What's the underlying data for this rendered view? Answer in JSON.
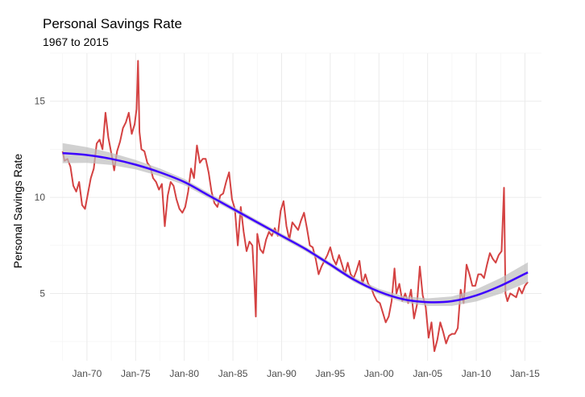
{
  "chart_data": {
    "type": "line",
    "title": "Personal Savings Rate",
    "subtitle": "1967 to 2015",
    "xlabel": "",
    "ylabel": "Personal Savings Rate",
    "xlim": [
      1966.2,
      2016.7
    ],
    "ylim": [
      1.5,
      17.5
    ],
    "x_ticks": [
      1970,
      1975,
      1980,
      1985,
      1990,
      1995,
      2000,
      2005,
      2010,
      2015
    ],
    "x_tick_labels": [
      "Jan-70",
      "Jan-75",
      "Jan-80",
      "Jan-85",
      "Jan-90",
      "Jan-95",
      "Jan-00",
      "Jan-05",
      "Jan-10",
      "Jan-15"
    ],
    "y_ticks": [
      5,
      10,
      15
    ],
    "y_tick_labels": [
      "5",
      "10",
      "15"
    ],
    "grid": true,
    "colors": {
      "series": "#d44242",
      "smooth": "#3d00ff",
      "band": "#bdbdbd"
    },
    "series": [
      {
        "x": [
          1967.5,
          1967.7,
          1968.0,
          1968.3,
          1968.6,
          1968.9,
          1969.2,
          1969.5,
          1969.8,
          1970.1,
          1970.4,
          1970.7,
          1971.0,
          1971.3,
          1971.6,
          1971.9,
          1972.2,
          1972.5,
          1972.8,
          1973.1,
          1973.4,
          1973.7,
          1974.0,
          1974.3,
          1974.6,
          1974.9,
          1975.1,
          1975.25,
          1975.4,
          1975.6,
          1975.9,
          1976.2,
          1976.5,
          1976.8,
          1977.1,
          1977.4,
          1977.7,
          1978.0,
          1978.3,
          1978.6,
          1978.9,
          1979.2,
          1979.5,
          1979.8,
          1980.1,
          1980.4,
          1980.7,
          1981.0,
          1981.3,
          1981.6,
          1981.9,
          1982.2,
          1982.5,
          1982.8,
          1983.1,
          1983.4,
          1983.7,
          1984.0,
          1984.3,
          1984.6,
          1984.9,
          1985.2,
          1985.5,
          1985.8,
          1986.1,
          1986.4,
          1986.7,
          1987.0,
          1987.2,
          1987.35,
          1987.5,
          1987.8,
          1988.1,
          1988.4,
          1988.7,
          1989.0,
          1989.3,
          1989.6,
          1989.9,
          1990.2,
          1990.5,
          1990.8,
          1991.1,
          1991.4,
          1991.7,
          1992.0,
          1992.3,
          1992.6,
          1992.9,
          1993.2,
          1993.5,
          1993.8,
          1994.1,
          1994.4,
          1994.7,
          1995.0,
          1995.3,
          1995.6,
          1995.9,
          1996.2,
          1996.5,
          1996.8,
          1997.1,
          1997.4,
          1997.7,
          1998.0,
          1998.3,
          1998.6,
          1998.9,
          1999.2,
          1999.5,
          1999.8,
          2000.1,
          2000.4,
          2000.7,
          2001.0,
          2001.3,
          2001.6,
          2001.8,
          2002.1,
          2002.4,
          2002.7,
          2003.0,
          2003.3,
          2003.6,
          2003.9,
          2004.2,
          2004.5,
          2004.8,
          2005.1,
          2005.4,
          2005.7,
          2006.0,
          2006.3,
          2006.6,
          2006.9,
          2007.2,
          2007.5,
          2007.8,
          2008.1,
          2008.4,
          2008.7,
          2009.0,
          2009.3,
          2009.6,
          2009.9,
          2010.2,
          2010.5,
          2010.8,
          2011.1,
          2011.4,
          2011.7,
          2012.0,
          2012.3,
          2012.6,
          2012.85,
          2013.0,
          2013.2,
          2013.5,
          2013.8,
          2014.1,
          2014.4,
          2014.7,
          2015.0,
          2015.3
        ],
        "values": [
          12.4,
          11.9,
          12.0,
          11.6,
          10.6,
          10.3,
          10.8,
          9.6,
          9.4,
          10.2,
          11.0,
          11.5,
          12.8,
          13.0,
          12.5,
          14.4,
          13.1,
          12.3,
          11.4,
          12.4,
          12.9,
          13.6,
          13.9,
          14.4,
          13.3,
          13.8,
          14.6,
          17.1,
          13.4,
          12.5,
          12.4,
          11.8,
          11.6,
          11.0,
          10.8,
          10.4,
          10.7,
          8.5,
          10.1,
          10.8,
          10.6,
          9.9,
          9.4,
          9.2,
          9.5,
          10.3,
          11.5,
          11.0,
          12.7,
          11.8,
          12.0,
          12.0,
          11.3,
          10.3,
          9.7,
          9.5,
          10.1,
          10.2,
          10.8,
          11.3,
          9.9,
          9.4,
          7.5,
          9.5,
          8.2,
          7.2,
          7.7,
          7.5,
          5.6,
          3.8,
          8.1,
          7.3,
          7.1,
          7.8,
          8.2,
          8.0,
          8.4,
          8.0,
          9.3,
          9.8,
          8.5,
          7.8,
          8.7,
          8.5,
          8.3,
          8.8,
          9.2,
          8.4,
          7.5,
          7.4,
          6.8,
          6.0,
          6.4,
          6.7,
          7.0,
          7.4,
          6.8,
          6.5,
          7.0,
          6.5,
          6.0,
          6.6,
          6.0,
          5.8,
          6.2,
          6.7,
          5.5,
          6.0,
          5.5,
          5.3,
          4.9,
          4.6,
          4.5,
          4.0,
          3.5,
          3.8,
          4.6,
          6.3,
          5.0,
          5.5,
          4.6,
          5.0,
          4.5,
          5.2,
          3.7,
          4.4,
          6.4,
          4.9,
          4.3,
          2.7,
          3.5,
          2.0,
          2.6,
          3.5,
          3.0,
          2.4,
          2.8,
          2.9,
          2.9,
          3.2,
          5.2,
          4.5,
          6.5,
          6.0,
          5.4,
          5.4,
          6.0,
          6.0,
          5.8,
          6.5,
          7.1,
          6.8,
          6.6,
          7.0,
          7.2,
          10.5,
          5.0,
          4.6,
          5.0,
          4.9,
          4.8,
          5.3,
          5.0,
          5.4,
          5.6
        ]
      }
    ],
    "smooth": {
      "x": [
        1967.5,
        1970,
        1972.5,
        1975,
        1977.5,
        1980,
        1982.5,
        1985,
        1987.5,
        1990,
        1992.5,
        1995,
        1997.5,
        2000,
        2002.5,
        2005,
        2007.5,
        2010,
        2012.5,
        2015.3
      ],
      "values": [
        12.3,
        12.2,
        12.0,
        11.7,
        11.3,
        10.8,
        10.1,
        9.4,
        8.7,
        8.0,
        7.3,
        6.5,
        5.7,
        5.1,
        4.7,
        4.55,
        4.6,
        4.9,
        5.4,
        6.1
      ]
    }
  }
}
